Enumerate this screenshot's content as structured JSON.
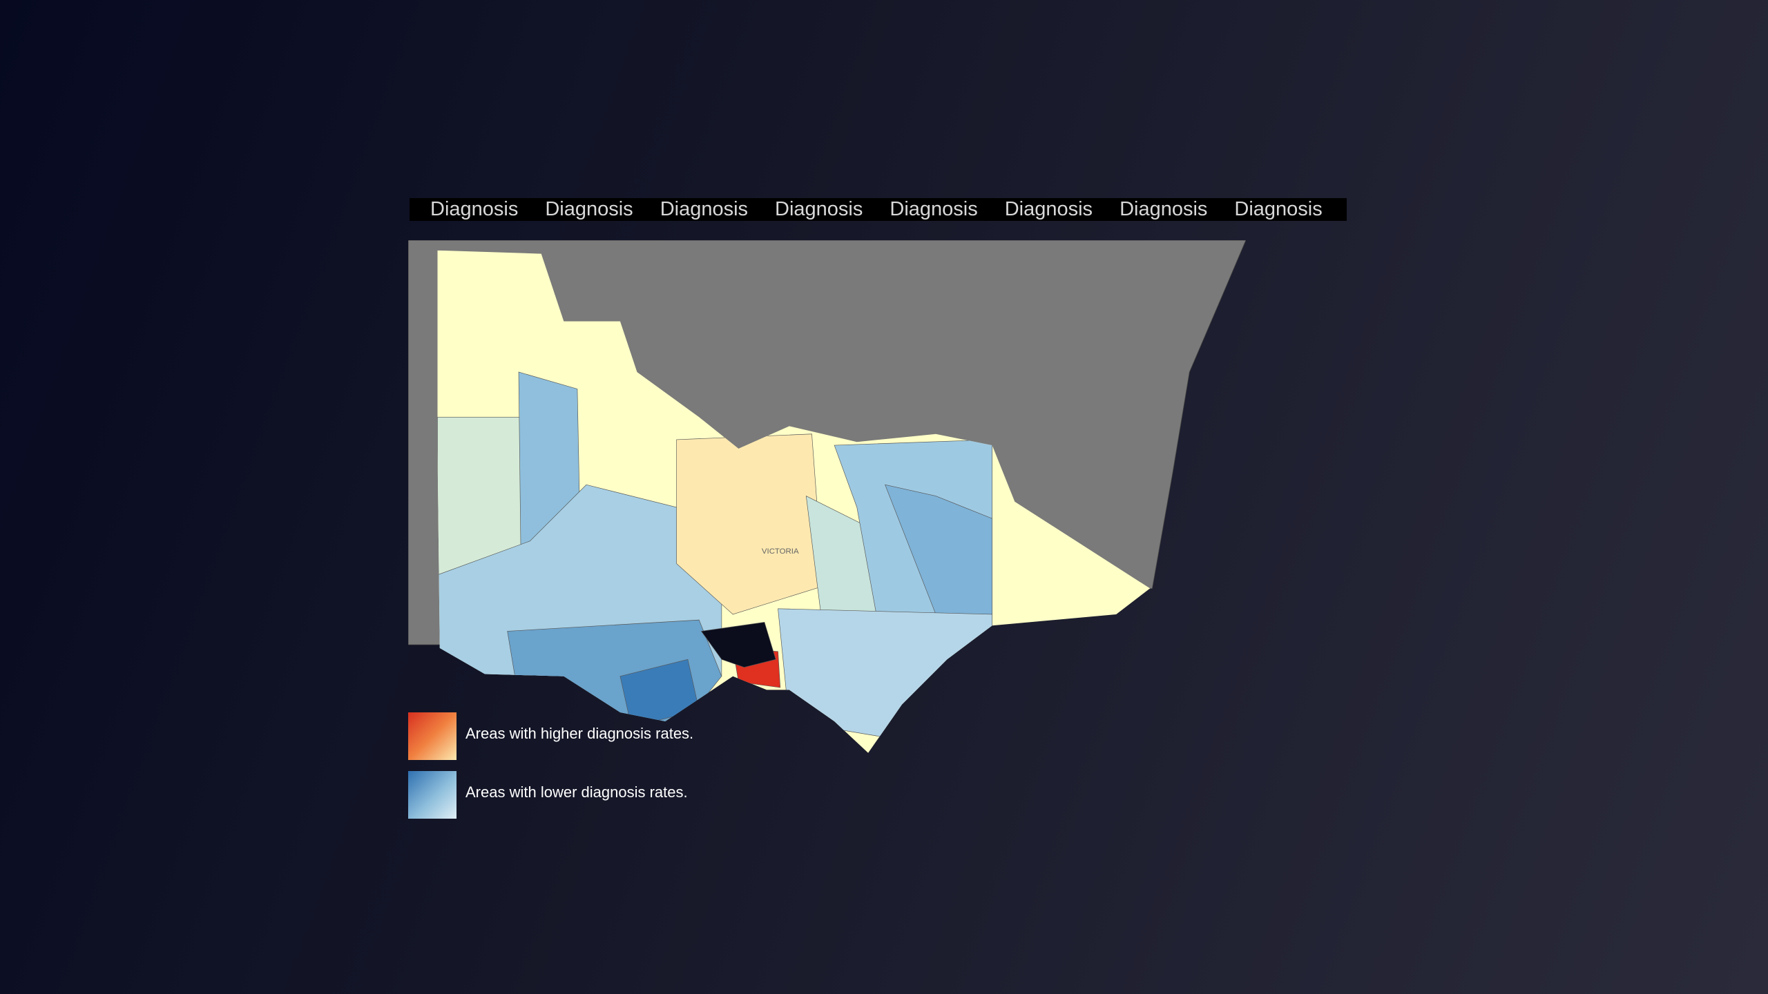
{
  "tabs": [
    "Diagnosis",
    "Diagnosis",
    "Diagnosis",
    "Diagnosis",
    "Diagnosis",
    "Diagnosis",
    "Diagnosis",
    "Diagnosis"
  ],
  "map": {
    "label": "VICTORIA"
  },
  "legend": [
    {
      "label": "Areas with higher diagnosis rates."
    },
    {
      "label": "Areas with lower diagnosis rates."
    }
  ]
}
